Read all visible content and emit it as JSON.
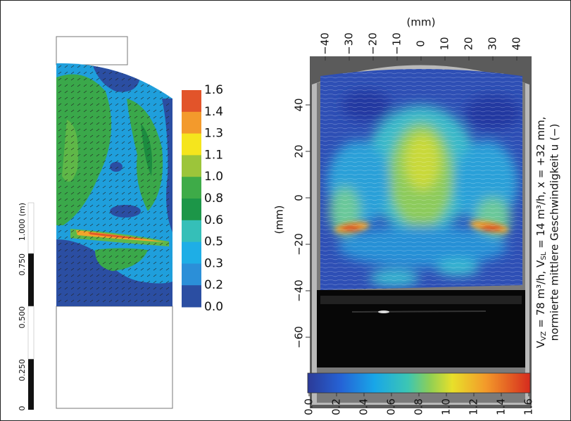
{
  "left_panel": {
    "scale_bar_labels": [
      "0",
      "0.250",
      "0.500",
      "0.750",
      "1.000 (m)"
    ],
    "colorbar_labels": [
      "1.6",
      "1.4",
      "1.3",
      "1.1",
      "1.0",
      "0.8",
      "0.6",
      "0.5",
      "0.3",
      "0.2",
      "0.0"
    ]
  },
  "right_panel": {
    "top_axis_label": "(mm)",
    "top_ticks": [
      "−40",
      "−30",
      "−20",
      "−10",
      "0",
      "10",
      "20",
      "30",
      "40"
    ],
    "left_axis_label": "(mm)",
    "left_ticks": [
      "40",
      "20",
      "0",
      "−20",
      "−40",
      "−60"
    ],
    "colorbar_ticks": [
      "0.0",
      "0.2",
      "0.4",
      "0.6",
      "0.8",
      "1.0",
      "1.2",
      "1.4",
      "1.6"
    ],
    "caption_line1": [
      "V",
      "VZ",
      " = 78 m³/h, V",
      "SL",
      " = 14 m³/h, x = +32 mm,"
    ],
    "caption_line2": "normierte mittlere Geschwindigkeit u (−)"
  }
}
